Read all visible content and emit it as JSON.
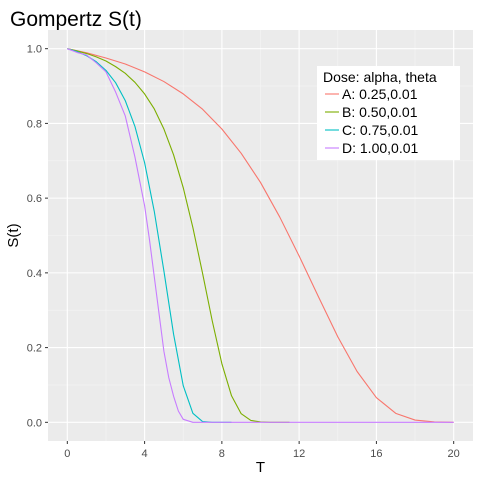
{
  "chart_data": {
    "type": "line",
    "title": "Gompertz S(t)",
    "xlabel": "T",
    "ylabel": "S(t)",
    "xlim": [
      -1,
      21
    ],
    "ylim": [
      -0.05,
      1.05
    ],
    "x_ticks": [
      0,
      4,
      8,
      12,
      16,
      20
    ],
    "x_tick_labels": [
      "0",
      "4",
      "8",
      "12",
      "16",
      "20"
    ],
    "y_ticks": [
      0.0,
      0.2,
      0.4,
      0.6,
      0.8,
      1.0
    ],
    "y_tick_labels": [
      "0.0",
      "0.2",
      "0.4",
      "0.6",
      "0.8",
      "1.0"
    ],
    "grid": true,
    "legend": {
      "title": "Dose: alpha, theta",
      "placement": "top-right"
    },
    "series": [
      {
        "name": "A: 0.25,0.01",
        "color": "#F8766D",
        "x": [
          0,
          1,
          2,
          3,
          4,
          5,
          6,
          7,
          8,
          9,
          10,
          11,
          12,
          13,
          14,
          15,
          16,
          17,
          18,
          19,
          20
        ],
        "y": [
          1.0,
          0.989,
          0.975,
          0.959,
          0.938,
          0.912,
          0.879,
          0.838,
          0.785,
          0.72,
          0.642,
          0.549,
          0.445,
          0.336,
          0.229,
          0.136,
          0.066,
          0.024,
          0.006,
          0.001,
          0.0
        ]
      },
      {
        "name": "B: 0.50,0.01",
        "color": "#7CAE00",
        "x": [
          0,
          0.5,
          1,
          1.5,
          2,
          2.5,
          3,
          3.5,
          4,
          4.5,
          5,
          5.5,
          6,
          6.5,
          7,
          7.5,
          8,
          8.5,
          9,
          9.5,
          10,
          10.5,
          11,
          11.5
        ],
        "y": [
          1.0,
          0.994,
          0.987,
          0.978,
          0.967,
          0.952,
          0.934,
          0.91,
          0.879,
          0.839,
          0.785,
          0.716,
          0.628,
          0.521,
          0.399,
          0.272,
          0.157,
          0.071,
          0.023,
          0.005,
          0.001,
          0.0,
          0.0,
          0.0
        ]
      },
      {
        "name": "C: 0.75,0.01",
        "color": "#00BFC4",
        "x": [
          0,
          0.5,
          1,
          1.5,
          2,
          2.5,
          3,
          3.5,
          4,
          4.5,
          5,
          5.5,
          6,
          6.5,
          7,
          7.5,
          8,
          8.5
        ],
        "y": [
          1.0,
          0.992,
          0.981,
          0.965,
          0.942,
          0.909,
          0.861,
          0.792,
          0.695,
          0.565,
          0.405,
          0.236,
          0.098,
          0.024,
          0.002,
          0.0,
          0.0,
          0.0
        ]
      },
      {
        "name": "D: 1.00,0.01",
        "color": "#C77CFF",
        "x": [
          0,
          0.5,
          1,
          1.5,
          2,
          2.5,
          3,
          3.5,
          4,
          4.25,
          4.5,
          4.75,
          5,
          5.25,
          5.5,
          5.75,
          6,
          6.5,
          7,
          8,
          9,
          10,
          12,
          14,
          16,
          18,
          20
        ],
        "y": [
          1.0,
          0.99,
          0.983,
          0.962,
          0.938,
          0.884,
          0.82,
          0.71,
          0.58,
          0.49,
          0.39,
          0.29,
          0.19,
          0.12,
          0.07,
          0.03,
          0.008,
          0.0,
          0.0,
          0.0,
          0.0,
          0.0,
          0.0,
          0.0,
          0.0,
          0.0,
          0.0
        ]
      }
    ]
  }
}
